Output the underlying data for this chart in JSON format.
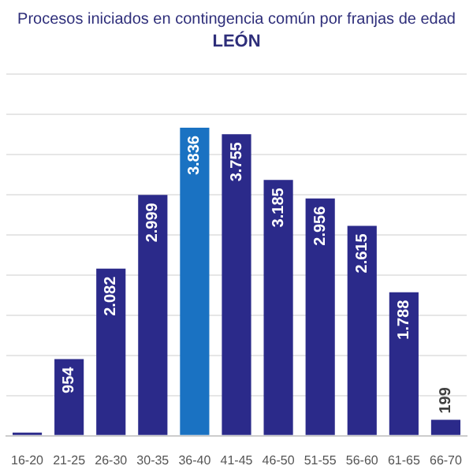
{
  "chart_data": {
    "type": "bar",
    "title": "Procesos iniciados en contingencia común por franjas de edad",
    "subtitle": "LEÓN",
    "categories": [
      "16-20",
      "21-25",
      "26-30",
      "30-35",
      "36-40",
      "41-45",
      "46-50",
      "51-55",
      "56-60",
      "61-65",
      "66-70"
    ],
    "values": [
      40,
      954,
      2082,
      2999,
      3836,
      3755,
      3185,
      2956,
      2615,
      1788,
      199
    ],
    "value_labels": [
      null,
      "954",
      "2.082",
      "2.999",
      "3.836",
      "3.755",
      "3.185",
      "2.956",
      "2.615",
      "1.788",
      "199"
    ],
    "colors": [
      "#2b2a8a",
      "#2b2a8a",
      "#2b2a8a",
      "#2b2a8a",
      "#1a72c2",
      "#2b2a8a",
      "#2b2a8a",
      "#2b2a8a",
      "#2b2a8a",
      "#2b2a8a",
      "#2b2a8a"
    ],
    "ylim": [
      0,
      4500
    ],
    "yticks": [
      {
        "value": 0,
        "label": null
      },
      {
        "value": 500,
        "label": null
      },
      {
        "value": 1000,
        "label": null
      },
      {
        "value": 1500,
        "label": null
      },
      {
        "value": 2000,
        "label": null
      },
      {
        "value": 2500,
        "label": null
      },
      {
        "value": 3000,
        "label": null
      },
      {
        "value": 3500,
        "label": null
      },
      {
        "value": 4000,
        "label": null
      },
      {
        "value": 4500,
        "label": null
      }
    ],
    "grid": "y",
    "tick_labels": "x"
  }
}
